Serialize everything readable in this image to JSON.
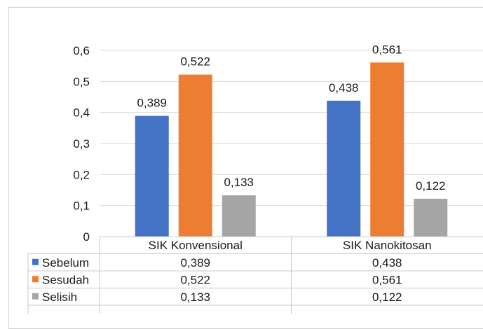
{
  "chart_data": {
    "type": "bar",
    "categories": [
      "SIK Konvensional",
      "SIK Nanokitosan"
    ],
    "series": [
      {
        "name": "Sebelum",
        "values": [
          0.389,
          0.438
        ],
        "labels": [
          "0,389",
          "0,438"
        ],
        "color": "#4472c4"
      },
      {
        "name": "Sesudah",
        "values": [
          0.522,
          0.561
        ],
        "labels": [
          "0,522",
          "0,561"
        ],
        "color": "#ed7d31"
      },
      {
        "name": "Selisih",
        "values": [
          0.133,
          0.122
        ],
        "labels": [
          "0,133",
          "0,122"
        ],
        "color": "#a5a5a5"
      }
    ],
    "ylim": [
      0,
      0.6
    ],
    "yticks": [
      0,
      0.1,
      0.2,
      0.3,
      0.4,
      0.5,
      0.6
    ],
    "ytick_labels": [
      "0",
      "0,1",
      "0,2",
      "0,3",
      "0,4",
      "0,5",
      "0,6"
    ],
    "grid": true,
    "legend": "data-table"
  }
}
